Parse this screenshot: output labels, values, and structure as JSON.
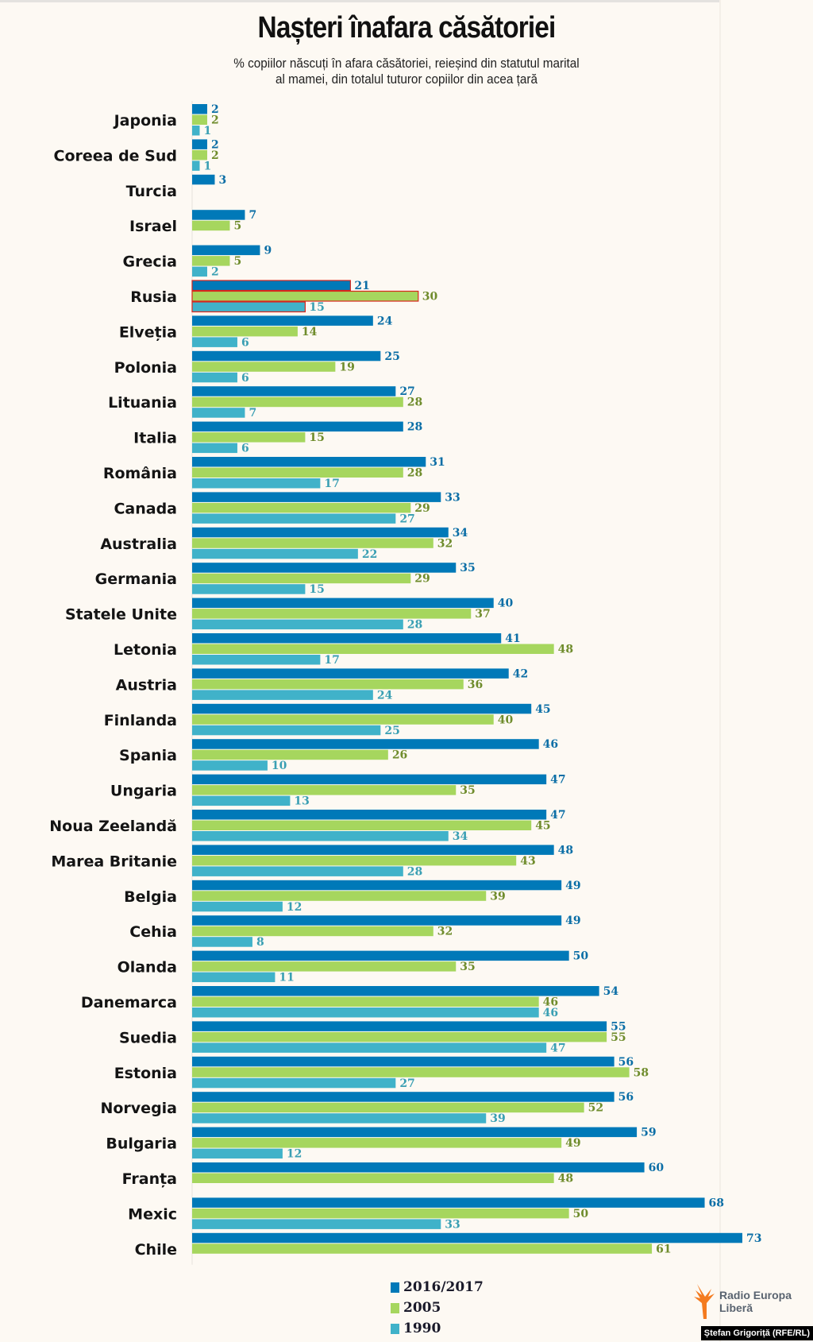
{
  "chart_data": {
    "type": "bar",
    "orientation": "horizontal",
    "title": "Nașteri înafara căsătoriei",
    "subtitle": [
      "% copiilor născuți în afara căsătoriei, reieșind din statutul marital",
      "al mamei, din totalul tuturor copiilor din acea țară"
    ],
    "categories": [
      "Japonia",
      "Coreea de Sud",
      "Turcia",
      "Israel",
      "Grecia",
      "Rusia",
      "Elveția",
      "Polonia",
      "Lituania",
      "Italia",
      "România",
      "Canada",
      "Australia",
      "Germania",
      "Statele Unite",
      "Letonia",
      "Austria",
      "Finlanda",
      "Spania",
      "Ungaria",
      "Noua Zeelandă",
      "Marea Britanie",
      "Belgia",
      "Cehia",
      "Olanda",
      "Danemarca",
      "Suedia",
      "Estonia",
      "Norvegia",
      "Bulgaria",
      "Franța",
      "Mexic",
      "Chile"
    ],
    "highlighted_category": "Rusia",
    "series": [
      {
        "name": "2016/2017",
        "color": "#0079b8",
        "label_color": "#0b6ea6",
        "values": [
          2,
          2,
          3,
          7,
          9,
          21,
          24,
          25,
          27,
          28,
          31,
          33,
          34,
          35,
          40,
          41,
          42,
          45,
          46,
          47,
          47,
          48,
          49,
          49,
          50,
          54,
          55,
          56,
          56,
          59,
          60,
          68,
          73
        ]
      },
      {
        "name": "2005",
        "color": "#a6d65e",
        "label_color": "#6f8c2c",
        "values": [
          2,
          2,
          null,
          5,
          5,
          30,
          14,
          19,
          28,
          15,
          28,
          29,
          32,
          29,
          37,
          48,
          36,
          40,
          26,
          35,
          45,
          43,
          39,
          32,
          35,
          46,
          55,
          58,
          52,
          49,
          48,
          50,
          61
        ]
      },
      {
        "name": "1990",
        "color": "#40b2c9",
        "label_color": "#3a9fb3",
        "values": [
          1,
          1,
          null,
          null,
          2,
          15,
          6,
          6,
          7,
          6,
          17,
          27,
          22,
          15,
          28,
          17,
          24,
          25,
          10,
          13,
          34,
          28,
          12,
          8,
          11,
          46,
          47,
          27,
          39,
          12,
          null,
          33,
          null
        ]
      }
    ],
    "xlim": [
      0,
      73
    ],
    "grid": false,
    "legend_placement": "bottom"
  },
  "logo": {
    "text_line1": "Radio Europa",
    "text_line2": "Liberă",
    "color": "#f47b20"
  },
  "credit": "Ștefan Grigoriță (RFE/RL)",
  "colors": {
    "background": "#fdf9f3",
    "highlight_outline": "#d9261c"
  }
}
